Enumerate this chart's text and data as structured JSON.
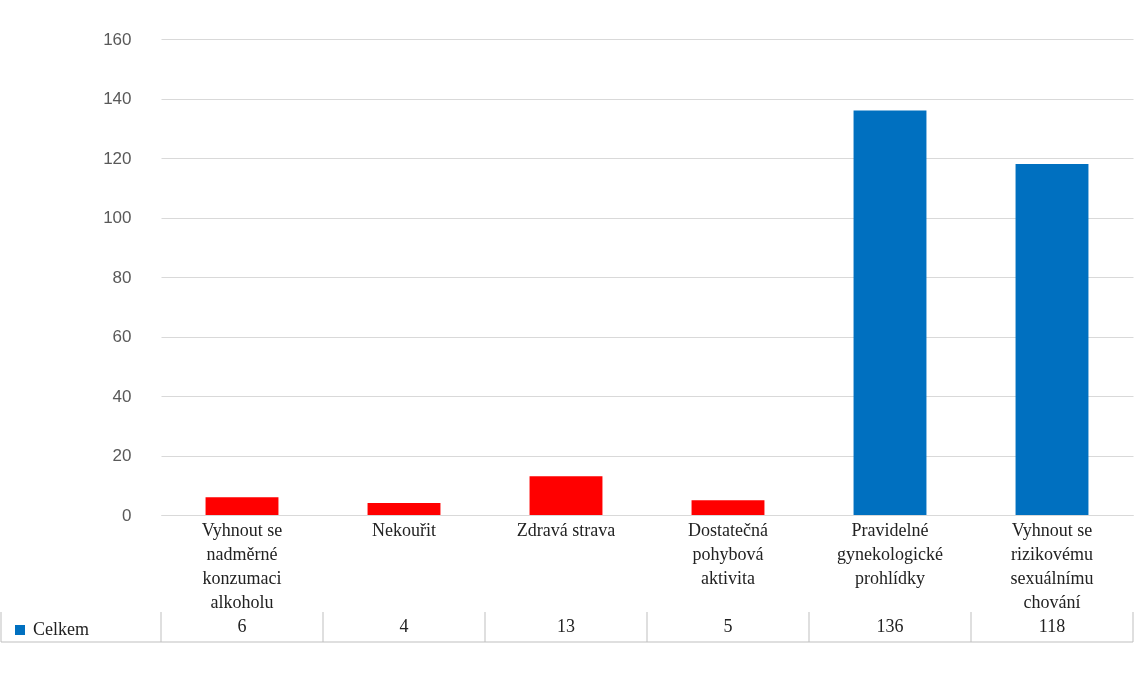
{
  "chart_data": {
    "type": "bar",
    "categories": [
      "Vyhnout se nadměrné konzumaci alkoholu",
      "Nekouřit",
      "Zdravá strava",
      "Dostatečná pohybová aktivita",
      "Pravidelné gynekologické prohlídky",
      "Vyhnout se rizikovému sexuálnímu chování"
    ],
    "series": [
      {
        "name": "Celkem",
        "color": "#0070c0",
        "colors": [
          "#ff0000",
          "#ff0000",
          "#ff0000",
          "#ff0000",
          "#0070c0",
          "#0070c0"
        ],
        "values": [
          6,
          4,
          13,
          5,
          136,
          118
        ]
      }
    ],
    "ylim": [
      0,
      160
    ],
    "yticks": [
      0,
      20,
      40,
      60,
      80,
      100,
      120,
      140,
      160
    ],
    "grid": "y",
    "data_labels": true,
    "legend": "bottom left"
  }
}
